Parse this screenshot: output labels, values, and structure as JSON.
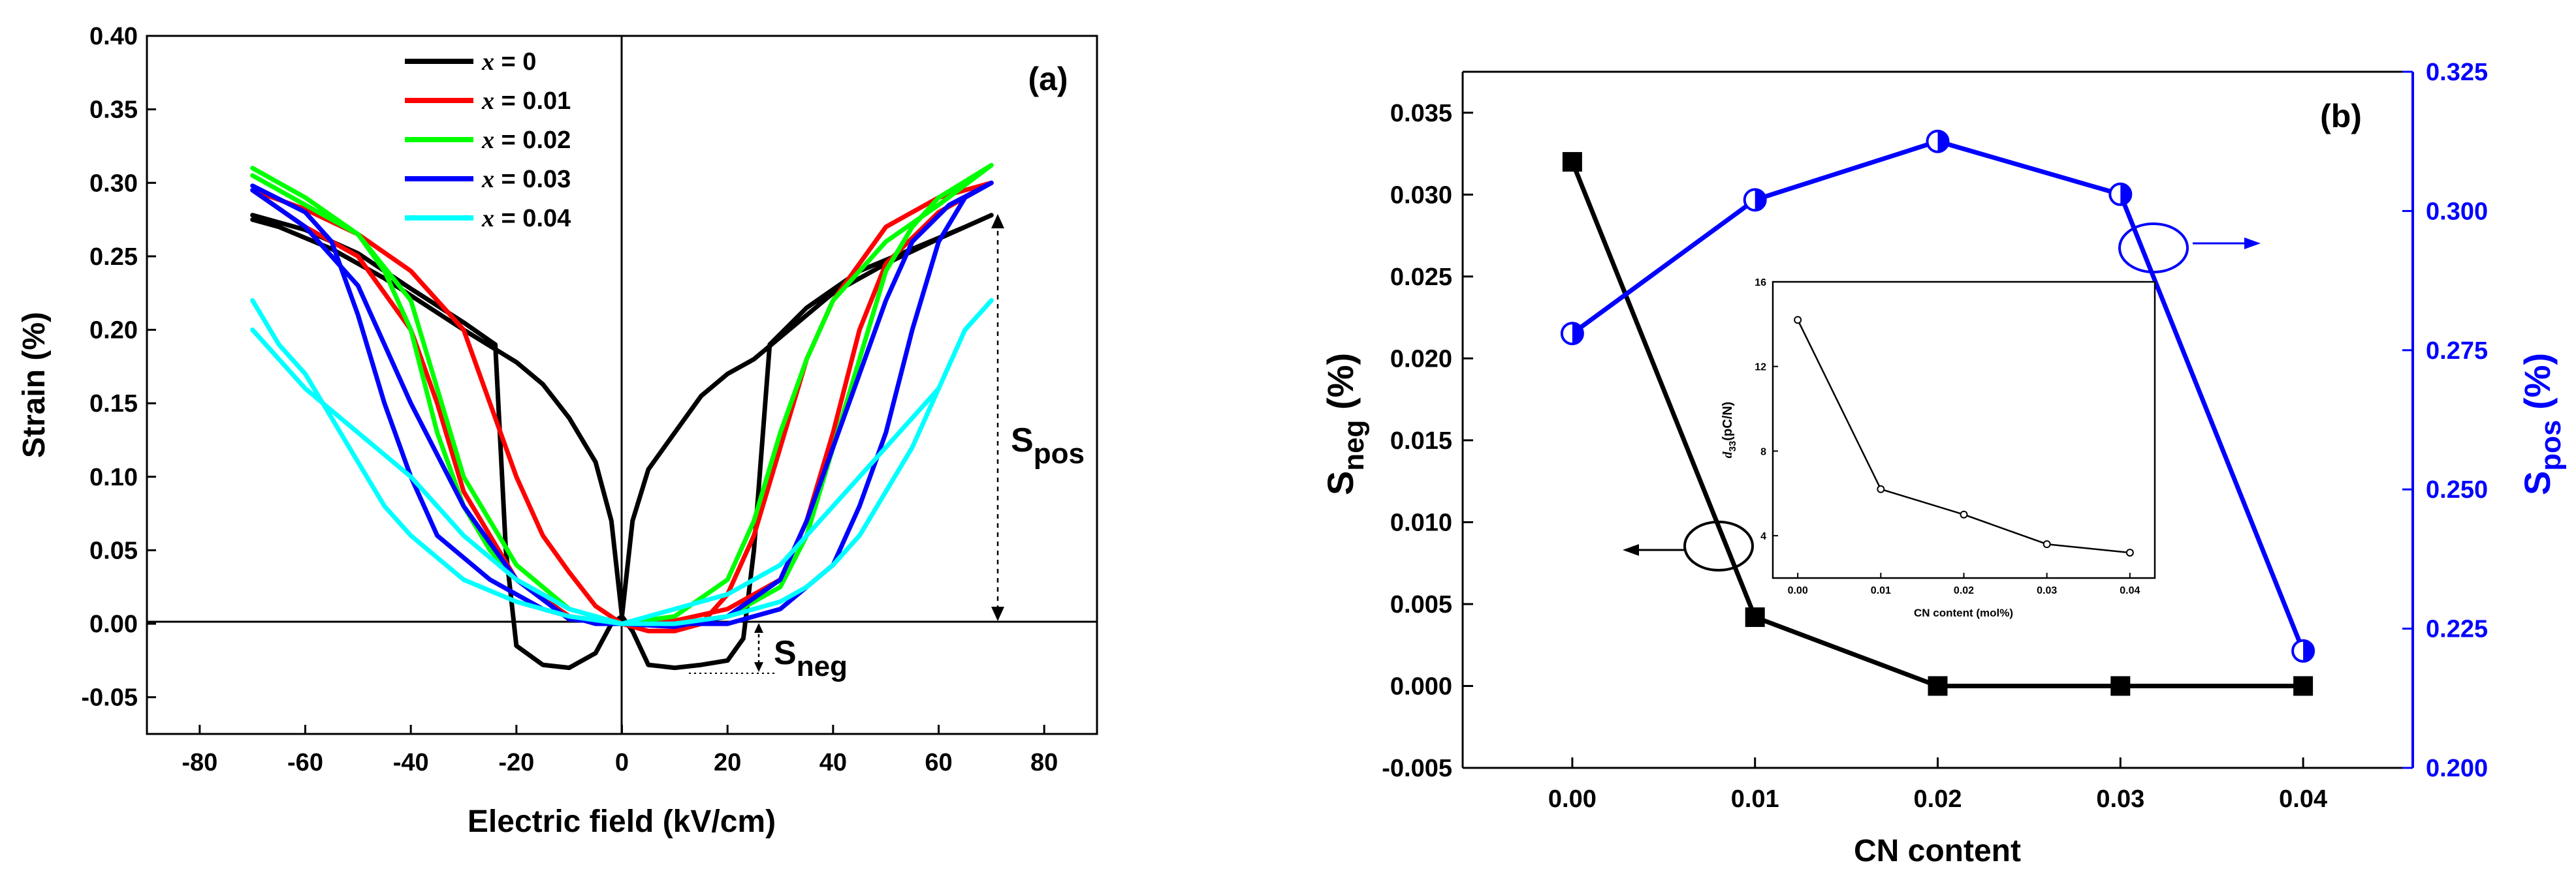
{
  "chart_data": [
    {
      "type": "line",
      "panel_label": "(a)",
      "xlabel": "Electric field (kV/cm)",
      "ylabel": "Strain (%)",
      "xlim": [
        -90,
        90
      ],
      "ylim": [
        -0.075,
        0.4
      ],
      "xticks": [
        -80,
        -60,
        -40,
        -20,
        0,
        20,
        40,
        60,
        80
      ],
      "xtick_labels": [
        "-80",
        "-60",
        "-40",
        "-20",
        "0",
        "20",
        "40",
        "60",
        "80"
      ],
      "yticks": [
        -0.05,
        0,
        0.05,
        0.1,
        0.15,
        0.2,
        0.25,
        0.3,
        0.35,
        0.4
      ],
      "ytick_labels": [
        "-0.05",
        "0.00",
        "0.05",
        "0.10",
        "0.15",
        "0.20",
        "0.25",
        "0.30",
        "0.35",
        "0.40"
      ],
      "legend_location": "top-left",
      "legend_symbol": "x",
      "legend_values": [
        " = 0",
        " = 0.01",
        " = 0.02",
        " = 0.03",
        " = 0.04"
      ],
      "annotations": {
        "s_pos": {
          "main": "S",
          "sub": "pos"
        },
        "s_neg": {
          "main": "S",
          "sub": "neg"
        }
      },
      "series": [
        {
          "name": "x = 0",
          "color": "#000000",
          "points": [
            [
              -70,
              0.278
            ],
            [
              -60,
              0.268
            ],
            [
              -50,
              0.252
            ],
            [
              -40,
              0.228
            ],
            [
              -30,
              0.205
            ],
            [
              -24,
              0.19
            ],
            [
              -22,
              0.05
            ],
            [
              -20,
              -0.015
            ],
            [
              -15,
              -0.028
            ],
            [
              -10,
              -0.03
            ],
            [
              -5,
              -0.02
            ],
            [
              -2,
              0.0
            ],
            [
              0,
              0.005
            ],
            [
              2,
              0.07
            ],
            [
              5,
              0.105
            ],
            [
              10,
              0.13
            ],
            [
              15,
              0.155
            ],
            [
              20,
              0.17
            ],
            [
              25,
              0.18
            ],
            [
              30,
              0.195
            ],
            [
              40,
              0.225
            ],
            [
              50,
              0.245
            ],
            [
              60,
              0.262
            ],
            [
              70,
              0.278
            ],
            [
              65,
              0.27
            ],
            [
              55,
              0.255
            ],
            [
              45,
              0.24
            ],
            [
              35,
              0.215
            ],
            [
              28,
              0.19
            ],
            [
              25,
              0.05
            ],
            [
              23,
              -0.01
            ],
            [
              20,
              -0.025
            ],
            [
              15,
              -0.028
            ],
            [
              10,
              -0.03
            ],
            [
              5,
              -0.028
            ],
            [
              2,
              -0.005
            ],
            [
              0,
              0.005
            ],
            [
              -2,
              0.07
            ],
            [
              -5,
              0.11
            ],
            [
              -10,
              0.14
            ],
            [
              -15,
              0.163
            ],
            [
              -20,
              0.178
            ],
            [
              -30,
              0.2
            ],
            [
              -45,
              0.235
            ],
            [
              -55,
              0.255
            ],
            [
              -65,
              0.27
            ],
            [
              -70,
              0.275
            ]
          ]
        },
        {
          "name": "x = 0.01",
          "color": "#ff0000",
          "points": [
            [
              -70,
              0.295
            ],
            [
              -60,
              0.282
            ],
            [
              -50,
              0.265
            ],
            [
              -40,
              0.24
            ],
            [
              -30,
              0.2
            ],
            [
              -25,
              0.15
            ],
            [
              -20,
              0.1
            ],
            [
              -15,
              0.06
            ],
            [
              -10,
              0.035
            ],
            [
              -5,
              0.012
            ],
            [
              0,
              0.0
            ],
            [
              5,
              -0.005
            ],
            [
              10,
              -0.005
            ],
            [
              15,
              0.0
            ],
            [
              20,
              0.02
            ],
            [
              25,
              0.06
            ],
            [
              30,
              0.12
            ],
            [
              35,
              0.18
            ],
            [
              40,
              0.22
            ],
            [
              50,
              0.27
            ],
            [
              60,
              0.29
            ],
            [
              70,
              0.3
            ],
            [
              60,
              0.28
            ],
            [
              50,
              0.245
            ],
            [
              45,
              0.2
            ],
            [
              40,
              0.13
            ],
            [
              35,
              0.07
            ],
            [
              30,
              0.03
            ],
            [
              20,
              0.01
            ],
            [
              10,
              0.002
            ],
            [
              0,
              0.0
            ],
            [
              -10,
              0.005
            ],
            [
              -20,
              0.03
            ],
            [
              -30,
              0.09
            ],
            [
              -35,
              0.15
            ],
            [
              -40,
              0.2
            ],
            [
              -50,
              0.25
            ],
            [
              -60,
              0.27
            ],
            [
              -70,
              0.295
            ]
          ]
        },
        {
          "name": "x = 0.02",
          "color": "#00ff00",
          "points": [
            [
              -70,
              0.31
            ],
            [
              -60,
              0.29
            ],
            [
              -50,
              0.265
            ],
            [
              -45,
              0.24
            ],
            [
              -40,
              0.2
            ],
            [
              -35,
              0.13
            ],
            [
              -30,
              0.08
            ],
            [
              -25,
              0.05
            ],
            [
              -20,
              0.03
            ],
            [
              -10,
              0.01
            ],
            [
              0,
              0.0
            ],
            [
              10,
              0.005
            ],
            [
              20,
              0.03
            ],
            [
              25,
              0.07
            ],
            [
              30,
              0.13
            ],
            [
              35,
              0.18
            ],
            [
              40,
              0.22
            ],
            [
              50,
              0.26
            ],
            [
              60,
              0.285
            ],
            [
              70,
              0.312
            ],
            [
              60,
              0.29
            ],
            [
              55,
              0.27
            ],
            [
              50,
              0.24
            ],
            [
              45,
              0.18
            ],
            [
              40,
              0.12
            ],
            [
              35,
              0.06
            ],
            [
              30,
              0.025
            ],
            [
              20,
              0.005
            ],
            [
              10,
              0.0
            ],
            [
              0,
              0.0
            ],
            [
              -10,
              0.01
            ],
            [
              -20,
              0.04
            ],
            [
              -30,
              0.1
            ],
            [
              -35,
              0.16
            ],
            [
              -40,
              0.22
            ],
            [
              -50,
              0.265
            ],
            [
              -60,
              0.285
            ],
            [
              -70,
              0.305
            ]
          ]
        },
        {
          "name": "x = 0.03",
          "color": "#0000ff",
          "points": [
            [
              -70,
              0.298
            ],
            [
              -60,
              0.28
            ],
            [
              -55,
              0.26
            ],
            [
              -50,
              0.21
            ],
            [
              -45,
              0.15
            ],
            [
              -40,
              0.1
            ],
            [
              -35,
              0.06
            ],
            [
              -25,
              0.03
            ],
            [
              -15,
              0.01
            ],
            [
              -5,
              0.0
            ],
            [
              0,
              0.0
            ],
            [
              10,
              -0.002
            ],
            [
              20,
              0.005
            ],
            [
              30,
              0.03
            ],
            [
              35,
              0.07
            ],
            [
              40,
              0.12
            ],
            [
              45,
              0.17
            ],
            [
              50,
              0.22
            ],
            [
              55,
              0.26
            ],
            [
              62,
              0.285
            ],
            [
              70,
              0.3
            ],
            [
              65,
              0.29
            ],
            [
              60,
              0.26
            ],
            [
              55,
              0.2
            ],
            [
              50,
              0.13
            ],
            [
              45,
              0.08
            ],
            [
              40,
              0.04
            ],
            [
              30,
              0.01
            ],
            [
              20,
              0.0
            ],
            [
              10,
              0.0
            ],
            [
              0,
              0.0
            ],
            [
              -10,
              0.003
            ],
            [
              -20,
              0.03
            ],
            [
              -30,
              0.08
            ],
            [
              -40,
              0.15
            ],
            [
              -50,
              0.23
            ],
            [
              -60,
              0.27
            ],
            [
              -70,
              0.295
            ]
          ]
        },
        {
          "name": "x = 0.04",
          "color": "#00ffff",
          "points": [
            [
              -70,
              0.22
            ],
            [
              -65,
              0.19
            ],
            [
              -60,
              0.17
            ],
            [
              -55,
              0.14
            ],
            [
              -50,
              0.11
            ],
            [
              -45,
              0.08
            ],
            [
              -40,
              0.06
            ],
            [
              -30,
              0.03
            ],
            [
              -20,
              0.015
            ],
            [
              -10,
              0.005
            ],
            [
              0,
              0.0
            ],
            [
              10,
              0.01
            ],
            [
              20,
              0.02
            ],
            [
              30,
              0.04
            ],
            [
              40,
              0.08
            ],
            [
              50,
              0.12
            ],
            [
              60,
              0.16
            ],
            [
              65,
              0.2
            ],
            [
              70,
              0.22
            ],
            [
              65,
              0.2
            ],
            [
              60,
              0.16
            ],
            [
              55,
              0.12
            ],
            [
              50,
              0.09
            ],
            [
              45,
              0.06
            ],
            [
              40,
              0.04
            ],
            [
              35,
              0.025
            ],
            [
              30,
              0.015
            ],
            [
              20,
              0.005
            ],
            [
              10,
              0.0
            ],
            [
              0,
              0.0
            ],
            [
              -10,
              0.01
            ],
            [
              -20,
              0.03
            ],
            [
              -30,
              0.06
            ],
            [
              -40,
              0.1
            ],
            [
              -50,
              0.13
            ],
            [
              -60,
              0.16
            ],
            [
              -70,
              0.2
            ]
          ]
        }
      ]
    },
    {
      "type": "line",
      "panel_label": "(b)",
      "xlabel": "CN content",
      "categories": [
        "0.00",
        "0.01",
        "0.02",
        "0.03",
        "0.04"
      ],
      "x": [
        0.0,
        0.01,
        0.02,
        0.03,
        0.04
      ],
      "xlim": [
        -0.006,
        0.046
      ],
      "y_left": {
        "label_main": "S",
        "label_sub": "neg",
        "label_unit": " (%)",
        "lim": [
          -0.005,
          0.0375
        ],
        "ticks": [
          -0.005,
          0,
          0.005,
          0.01,
          0.015,
          0.02,
          0.025,
          0.03,
          0.035
        ],
        "tick_labels": [
          "-0.005",
          "0.000",
          "0.005",
          "0.010",
          "0.015",
          "0.020",
          "0.025",
          "0.030",
          "0.035"
        ]
      },
      "y_right": {
        "label_main": "S",
        "label_sub": "pos",
        "label_unit": " (%)",
        "lim": [
          0.2,
          0.325
        ],
        "ticks": [
          0.2,
          0.225,
          0.25,
          0.275,
          0.3,
          0.325
        ],
        "tick_labels": [
          "0.200",
          "0.225",
          "0.250",
          "0.275",
          "0.300",
          "0.325"
        ],
        "color": "#0000ff"
      },
      "series": [
        {
          "name": "S_neg",
          "axis": "left",
          "color": "#000000",
          "marker": "square",
          "values": [
            0.032,
            0.0042,
            0.0,
            0.0,
            0.0
          ]
        },
        {
          "name": "S_pos",
          "axis": "right",
          "color": "#0000ff",
          "marker": "half-filled circle",
          "values": [
            0.278,
            0.302,
            0.3125,
            0.303,
            0.221
          ]
        }
      ],
      "inset": {
        "type": "line",
        "xlabel": "CN content (mol%)",
        "ylabel_main": "d",
        "ylabel_sub": "33",
        "ylabel_unit": "(pC/N)",
        "x": [
          0.0,
          0.01,
          0.02,
          0.03,
          0.04
        ],
        "values": [
          14.2,
          6.2,
          5.0,
          3.6,
          3.2
        ],
        "xlim": [
          -0.003,
          0.043
        ],
        "ylim": [
          2,
          16
        ],
        "xticks": [
          0,
          0.01,
          0.02,
          0.03,
          0.04
        ],
        "xtick_labels": [
          "0.00",
          "0.01",
          "0.02",
          "0.03",
          "0.04"
        ],
        "yticks": [
          4,
          8,
          12,
          16
        ],
        "ytick_labels": [
          "4",
          "8",
          "12",
          "16"
        ]
      }
    }
  ]
}
